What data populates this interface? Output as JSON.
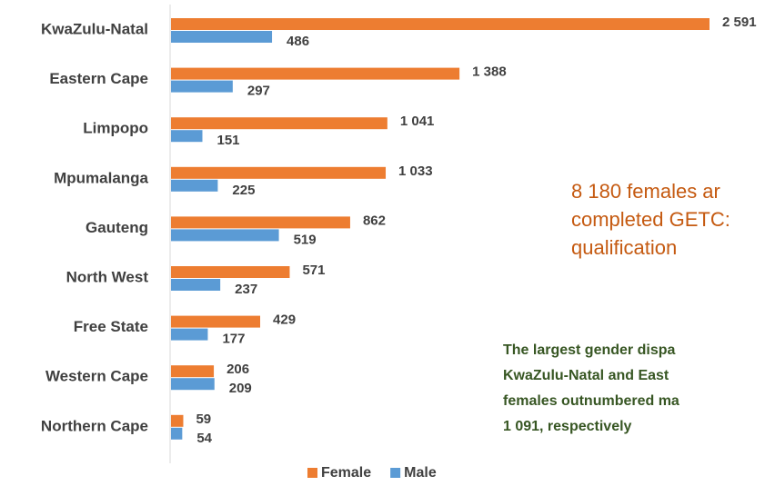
{
  "chart_data": {
    "type": "barh",
    "categories": [
      "KwaZulu-Natal",
      "Eastern Cape",
      "Limpopo",
      "Mpumalanga",
      "Gauteng",
      "North West",
      "Free State",
      "Western Cape",
      "Northern Cape"
    ],
    "series": [
      {
        "name": "Female",
        "color": "#ed7d31",
        "values": [
          2591,
          1388,
          1041,
          1033,
          862,
          571,
          429,
          206,
          59
        ],
        "value_labels": [
          "2 591",
          "1 388",
          "1 041",
          "1 033",
          "862",
          "571",
          "429",
          "206",
          "59"
        ]
      },
      {
        "name": "Male",
        "color": "#5b9bd5",
        "values": [
          486,
          297,
          151,
          225,
          519,
          237,
          177,
          209,
          54
        ],
        "value_labels": [
          "486",
          "297",
          "151",
          "225",
          "519",
          "237",
          "177",
          "209",
          "54"
        ]
      }
    ],
    "legend": "bottom",
    "annotations": [
      {
        "lines": [
          "8 180 females ar",
          "completed GETC:",
          "qualification"
        ],
        "color": "#c55a11"
      },
      {
        "lines": [
          "The largest gender dispa",
          "KwaZulu-Natal and East",
          "females outnumbered ma",
          "1 091, respectively"
        ],
        "color": "#375623"
      }
    ]
  }
}
